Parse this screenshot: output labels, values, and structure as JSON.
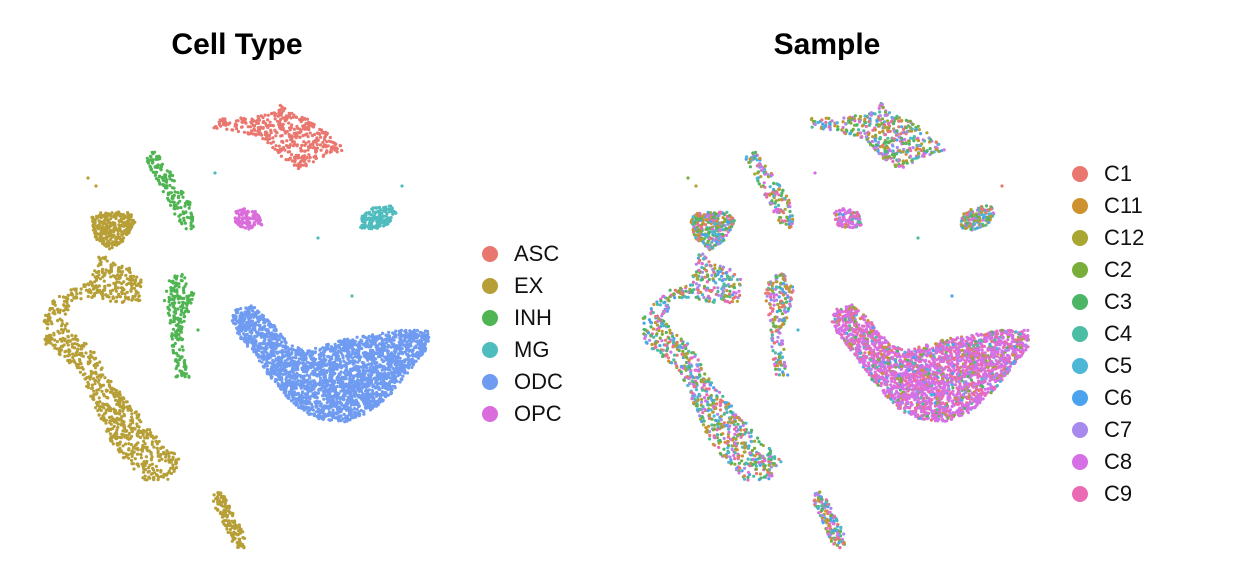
{
  "chart_data": [
    {
      "type": "scatter",
      "title": "Cell Type",
      "legend": "right",
      "grid": false,
      "axes": false,
      "series": [
        {
          "name": "ASC",
          "color": "#E9776F"
        },
        {
          "name": "EX",
          "color": "#B79F37"
        },
        {
          "name": "INH",
          "color": "#4FB452"
        },
        {
          "name": "MG",
          "color": "#4FBCBE"
        },
        {
          "name": "ODC",
          "color": "#6F9BF1"
        },
        {
          "name": "OPC",
          "color": "#DB6CDB"
        }
      ]
    },
    {
      "type": "scatter",
      "title": "Sample",
      "legend": "right",
      "grid": false,
      "axes": false,
      "series": [
        {
          "name": "C1",
          "color": "#E9776F"
        },
        {
          "name": "C11",
          "color": "#CD922F"
        },
        {
          "name": "C12",
          "color": "#A9A632"
        },
        {
          "name": "C2",
          "color": "#7AAE3B"
        },
        {
          "name": "C3",
          "color": "#4DB566"
        },
        {
          "name": "C4",
          "color": "#4CBCA3"
        },
        {
          "name": "C5",
          "color": "#4CB7D6"
        },
        {
          "name": "C6",
          "color": "#4BA3EE"
        },
        {
          "name": "C7",
          "color": "#A88AEE"
        },
        {
          "name": "C8",
          "color": "#D670E6"
        },
        {
          "name": "C9",
          "color": "#EA6BB3"
        }
      ]
    }
  ]
}
